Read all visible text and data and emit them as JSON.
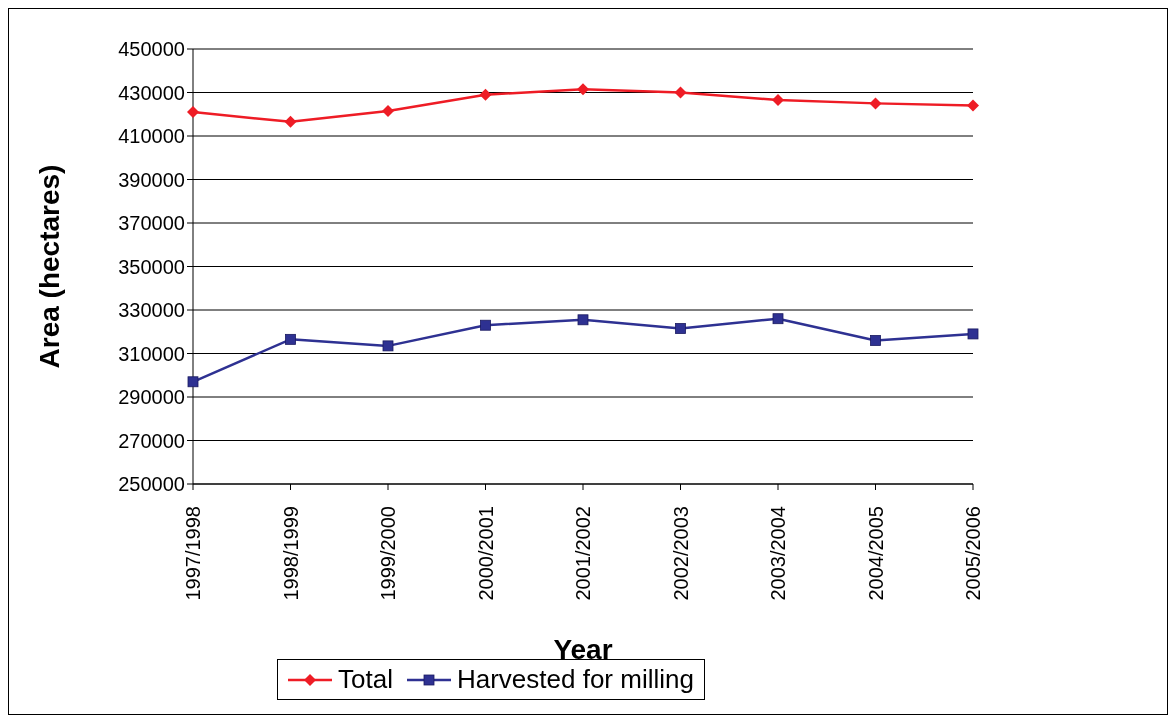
{
  "chart_data": {
    "type": "line",
    "xlabel": "Year",
    "ylabel": "Area (hectares)",
    "categories": [
      "1997/1998",
      "1998/1999",
      "1999/2000",
      "2000/2001",
      "2001/2002",
      "2002/2003",
      "2003/2004",
      "2004/2005",
      "2005/2006"
    ],
    "series": [
      {
        "name": "Total",
        "color": "#ee1c25",
        "marker": "diamond",
        "values": [
          421000,
          416500,
          421500,
          429000,
          431500,
          430000,
          426500,
          425000,
          424000
        ]
      },
      {
        "name": "Harvested for milling",
        "color": "#2e3192",
        "marker": "square",
        "values": [
          297000,
          316500,
          313500,
          323000,
          325500,
          321500,
          326000,
          316000,
          319000
        ]
      }
    ],
    "ylim": [
      250000,
      450000
    ],
    "yticks": [
      250000,
      270000,
      290000,
      310000,
      330000,
      350000,
      370000,
      390000,
      410000,
      430000,
      450000
    ],
    "grid": "y",
    "legend": "bottom",
    "line_style": "solid"
  }
}
